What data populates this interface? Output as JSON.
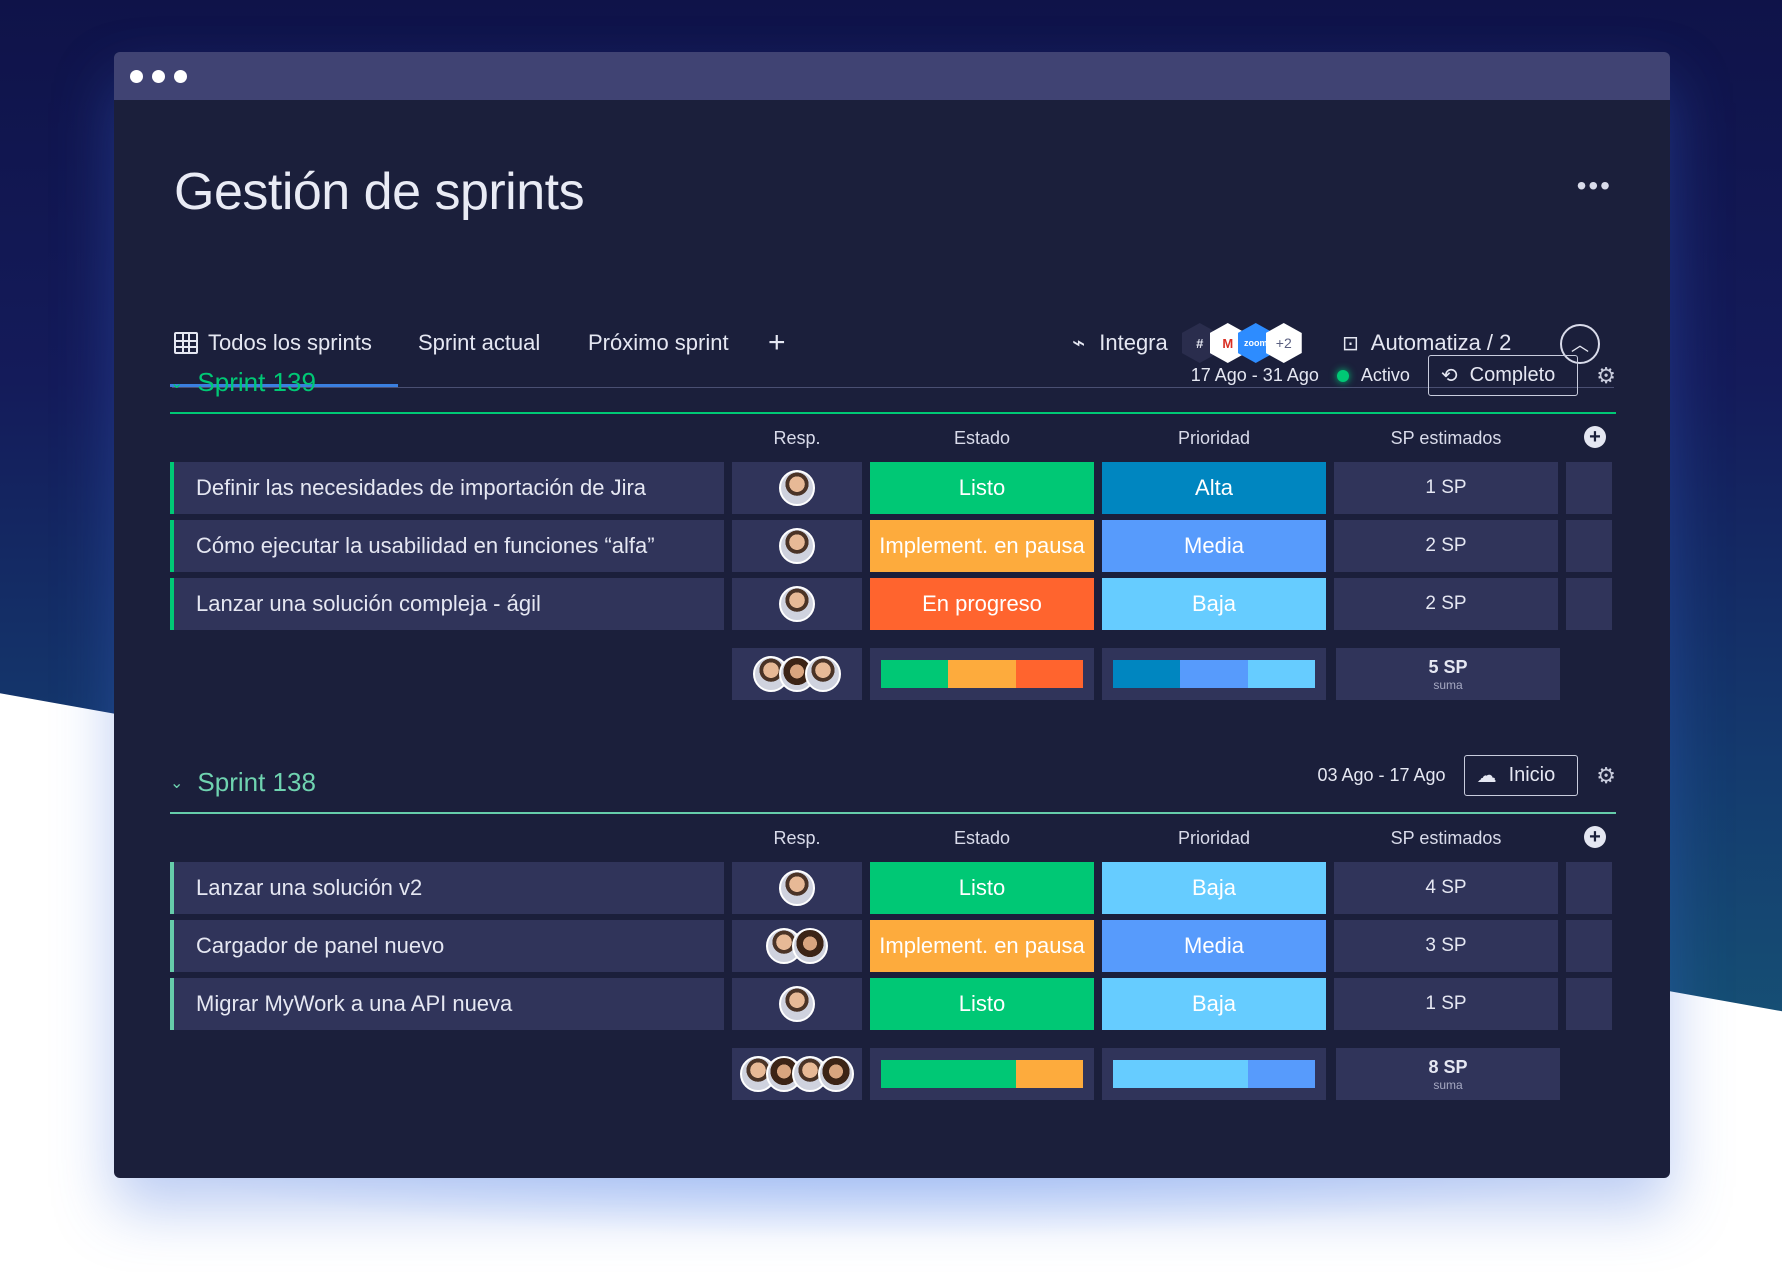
{
  "window": {
    "title": "Gestión de sprints"
  },
  "tabs": [
    {
      "label": "Todos los sprints",
      "active": true,
      "icon": "table-icon"
    },
    {
      "label": "Sprint actual"
    },
    {
      "label": "Próximo sprint"
    }
  ],
  "toolbar": {
    "add_tab": "+",
    "integrate_label": "Integra",
    "integrations": [
      "slack-icon",
      "gmail-icon",
      "zoom-icon"
    ],
    "integrations_more": "+2",
    "zoom_text": "zoom",
    "automate_label": "Automatiza / 2"
  },
  "columns": {
    "resp": "Resp.",
    "estado": "Estado",
    "prioridad": "Prioridad",
    "sp": "SP estimados"
  },
  "colors": {
    "listo": "#00c875",
    "pausa": "#fdab3d",
    "progreso": "#ff642e",
    "alta": "#0086c0",
    "media": "#579bfc",
    "baja": "#66ccff"
  },
  "groups": [
    {
      "title": "Sprint 139",
      "dates": "17 Ago - 31 Ago",
      "status": "Activo",
      "button": "Completo",
      "rows": [
        {
          "name": "Definir las necesidades de importación de Jira",
          "estado": "Listo",
          "estado_color": "#00c875",
          "prioridad": "Alta",
          "prioridad_color": "#0086c0",
          "sp": "1 SP",
          "avatars": 1
        },
        {
          "name": "Cómo ejecutar la usabilidad en funciones “alfa”",
          "estado": "Implement. en pausa",
          "estado_color": "#fdab3d",
          "prioridad": "Media",
          "prioridad_color": "#579bfc",
          "sp": "2 SP",
          "avatars": 1
        },
        {
          "name": "Lanzar una solución compleja - ágil",
          "estado": "En progreso",
          "estado_color": "#ff642e",
          "prioridad": "Baja",
          "prioridad_color": "#66ccff",
          "sp": "2 SP",
          "avatars": 1
        }
      ],
      "summary": {
        "avatars": 3,
        "estado_bar": [
          {
            "color": "#00c875",
            "fraction": 0.3333
          },
          {
            "color": "#fdab3d",
            "fraction": 0.3333
          },
          {
            "color": "#ff642e",
            "fraction": 0.3334
          }
        ],
        "prioridad_bar": [
          {
            "color": "#0086c0",
            "fraction": 0.3333
          },
          {
            "color": "#579bfc",
            "fraction": 0.3333
          },
          {
            "color": "#66ccff",
            "fraction": 0.3334
          }
        ],
        "sp_total": "5 SP",
        "sp_caption": "suma"
      }
    },
    {
      "title": "Sprint 138",
      "dates": "03 Ago - 17 Ago",
      "button": "Inicio",
      "rows": [
        {
          "name": "Lanzar una solución v2",
          "estado": "Listo",
          "estado_color": "#00c875",
          "prioridad": "Baja",
          "prioridad_color": "#66ccff",
          "sp": "4 SP",
          "avatars": 1
        },
        {
          "name": "Cargador de panel nuevo",
          "estado": "Implement. en pausa",
          "estado_color": "#fdab3d",
          "prioridad": "Media",
          "prioridad_color": "#579bfc",
          "sp": "3 SP",
          "avatars": 2
        },
        {
          "name": "Migrar MyWork a una API nueva",
          "estado": "Listo",
          "estado_color": "#00c875",
          "prioridad": "Baja",
          "prioridad_color": "#66ccff",
          "sp": "1 SP",
          "avatars": 1
        }
      ],
      "summary": {
        "avatars": 4,
        "estado_bar": [
          {
            "color": "#00c875",
            "fraction": 0.6667
          },
          {
            "color": "#fdab3d",
            "fraction": 0.3333
          }
        ],
        "prioridad_bar": [
          {
            "color": "#66ccff",
            "fraction": 0.6667
          },
          {
            "color": "#579bfc",
            "fraction": 0.3333
          }
        ],
        "sp_total": "8 SP",
        "sp_caption": "suma"
      }
    }
  ]
}
